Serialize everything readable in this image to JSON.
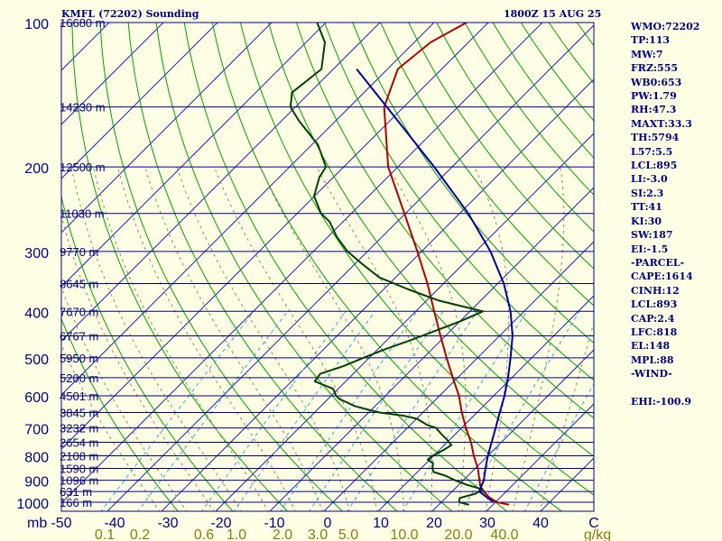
{
  "header": {
    "station": "KMFL (72202) Sounding",
    "time": "1800Z 15 AUG 25"
  },
  "indices": [
    "WMO:72202",
    "TP:113",
    "MW:7",
    "FRZ:555",
    "WB0:653",
    "PW:1.79",
    "RH:47.3",
    "MAXT:33.3",
    "TH:5794",
    "L57:5.5",
    "LCL:895",
    "LI:-3.0",
    "SI:2.3",
    "TT:41",
    "KI:30",
    "SW:187",
    "EI:-1.5",
    "-PARCEL-",
    "CAPE:1614",
    "CINH:12",
    "LCL:893",
    "CAP:2.4",
    "LFC:818",
    "EL:148",
    "MPL:88",
    "-WIND-",
    "",
    "EHI:-100.9"
  ],
  "colors": {
    "background": "#ffffe6",
    "isobar": "#000080",
    "isotherm": "#2020b0",
    "dry_adiabat": "#00a000",
    "moist_adiabat": "#8a8a60",
    "mixing_ratio": "#30a8d8",
    "temperature": "#b00000",
    "dewpoint": "#004000",
    "parcel": "#0000a0",
    "text": "#000080",
    "wr_text": "#8a7a10"
  },
  "chart_data": {
    "type": "line",
    "title": "KMFL (72202) Sounding",
    "subtitle": "1800Z 15 AUG 25",
    "pressure_axis": {
      "unit_label": "mb",
      "ticks": [
        100,
        200,
        300,
        400,
        500,
        600,
        700,
        800,
        900,
        1000
      ],
      "log_scale": true,
      "range": [
        1050,
        100
      ]
    },
    "temperature_axis": {
      "ticks": [
        "-50",
        "-40",
        "-30",
        "-20",
        "-10",
        "0",
        "10",
        "20",
        "30",
        "40",
        "C"
      ],
      "range": [
        -50,
        50
      ]
    },
    "mixing_ratio_axis": {
      "ticks": [
        "0.1",
        "0.2",
        "0.6",
        "1.0",
        "2.0",
        "3.0",
        "5.0",
        "10.0",
        "20.0",
        "40.0",
        "g/kg"
      ]
    },
    "height_labels": [
      {
        "p": 100,
        "label": "16680 m"
      },
      {
        "p": 150,
        "label": "14230 m"
      },
      {
        "p": 200,
        "label": "12500 m"
      },
      {
        "p": 250,
        "label": "11030 m"
      },
      {
        "p": 300,
        "label": "9770 m"
      },
      {
        "p": 350,
        "label": "8645 m"
      },
      {
        "p": 400,
        "label": "7670 m"
      },
      {
        "p": 450,
        "label": "6767 m"
      },
      {
        "p": 500,
        "label": "5950 m"
      },
      {
        "p": 550,
        "label": "5200 m"
      },
      {
        "p": 600,
        "label": "4501 m"
      },
      {
        "p": 650,
        "label": "3845 m"
      },
      {
        "p": 700,
        "label": "3232 m"
      },
      {
        "p": 750,
        "label": "2654 m"
      },
      {
        "p": 800,
        "label": "2108 m"
      },
      {
        "p": 850,
        "label": "1590 m"
      },
      {
        "p": 900,
        "label": "1096 m"
      },
      {
        "p": 950,
        "label": "631 m"
      },
      {
        "p": 1000,
        "label": "166 m"
      }
    ],
    "series": [
      {
        "key": "temperature",
        "points": [
          [
            1012,
            33
          ],
          [
            1000,
            30.3
          ],
          [
            975,
            27.8
          ],
          [
            950,
            25.9
          ],
          [
            925,
            24.2
          ],
          [
            900,
            23.0
          ],
          [
            850,
            20.5
          ],
          [
            800,
            17.4
          ],
          [
            750,
            14.4
          ],
          [
            700,
            10.8
          ],
          [
            650,
            7.2
          ],
          [
            600,
            3.6
          ],
          [
            550,
            -0.9
          ],
          [
            500,
            -5.7
          ],
          [
            450,
            -10.9
          ],
          [
            400,
            -16.6
          ],
          [
            350,
            -23.0
          ],
          [
            300,
            -30.8
          ],
          [
            250,
            -40.2
          ],
          [
            200,
            -51.8
          ],
          [
            150,
            -63.6
          ],
          [
            125,
            -68.1
          ],
          [
            110,
            -67.0
          ],
          [
            100,
            -64.0
          ]
        ]
      },
      {
        "key": "dewpoint",
        "points": [
          [
            1012,
            25.6
          ],
          [
            1000,
            23.3
          ],
          [
            980,
            22.6
          ],
          [
            960,
            24.7
          ],
          [
            940,
            25.2
          ],
          [
            920,
            21.5
          ],
          [
            900,
            18.5
          ],
          [
            880,
            15.8
          ],
          [
            865,
            13.0
          ],
          [
            850,
            12.1
          ],
          [
            830,
            11.3
          ],
          [
            815,
            9.6
          ],
          [
            800,
            9.8
          ],
          [
            780,
            10.7
          ],
          [
            760,
            11.3
          ],
          [
            740,
            9.4
          ],
          [
            720,
            7.3
          ],
          [
            700,
            5.3
          ],
          [
            690,
            3.1
          ],
          [
            680,
            1.6
          ],
          [
            670,
            0.1
          ],
          [
            660,
            -3.0
          ],
          [
            650,
            -8.0
          ],
          [
            640,
            -11.0
          ],
          [
            630,
            -13.9
          ],
          [
            620,
            -15.7
          ],
          [
            610,
            -17.8
          ],
          [
            600,
            -19.1
          ],
          [
            590,
            -20.0
          ],
          [
            580,
            -21.0
          ],
          [
            560,
            -25.7
          ],
          [
            540,
            -26.1
          ],
          [
            520,
            -23.2
          ],
          [
            500,
            -21.1
          ],
          [
            480,
            -18.7
          ],
          [
            460,
            -15.7
          ],
          [
            440,
            -12.9
          ],
          [
            420,
            -10.0
          ],
          [
            400,
            -7.6
          ],
          [
            380,
            -17.7
          ],
          [
            360,
            -25.4
          ],
          [
            340,
            -33.0
          ],
          [
            320,
            -38.3
          ],
          [
            300,
            -43.7
          ],
          [
            280,
            -48.3
          ],
          [
            260,
            -52.5
          ],
          [
            250,
            -55.6
          ],
          [
            230,
            -60.1
          ],
          [
            210,
            -62.6
          ],
          [
            200,
            -63.3
          ],
          [
            180,
            -68.8
          ],
          [
            160,
            -76.9
          ],
          [
            150,
            -80.9
          ],
          [
            140,
            -83.3
          ],
          [
            125,
            -82.2
          ],
          [
            110,
            -86.5
          ],
          [
            100,
            -91.6
          ]
        ]
      },
      {
        "key": "parcel",
        "points": [
          [
            1000,
            29.6
          ],
          [
            950,
            25.0
          ],
          [
            900,
            23.8
          ],
          [
            850,
            21.9
          ],
          [
            800,
            20.0
          ],
          [
            750,
            18.2
          ],
          [
            700,
            16.3
          ],
          [
            650,
            14.2
          ],
          [
            600,
            12.0
          ],
          [
            550,
            9.3
          ],
          [
            500,
            6.1
          ],
          [
            450,
            2.4
          ],
          [
            400,
            -2.5
          ],
          [
            350,
            -8.9
          ],
          [
            300,
            -17.3
          ],
          [
            250,
            -28.4
          ],
          [
            200,
            -43.3
          ],
          [
            150,
            -63.1
          ],
          [
            125,
            -75.7
          ]
        ]
      }
    ]
  }
}
